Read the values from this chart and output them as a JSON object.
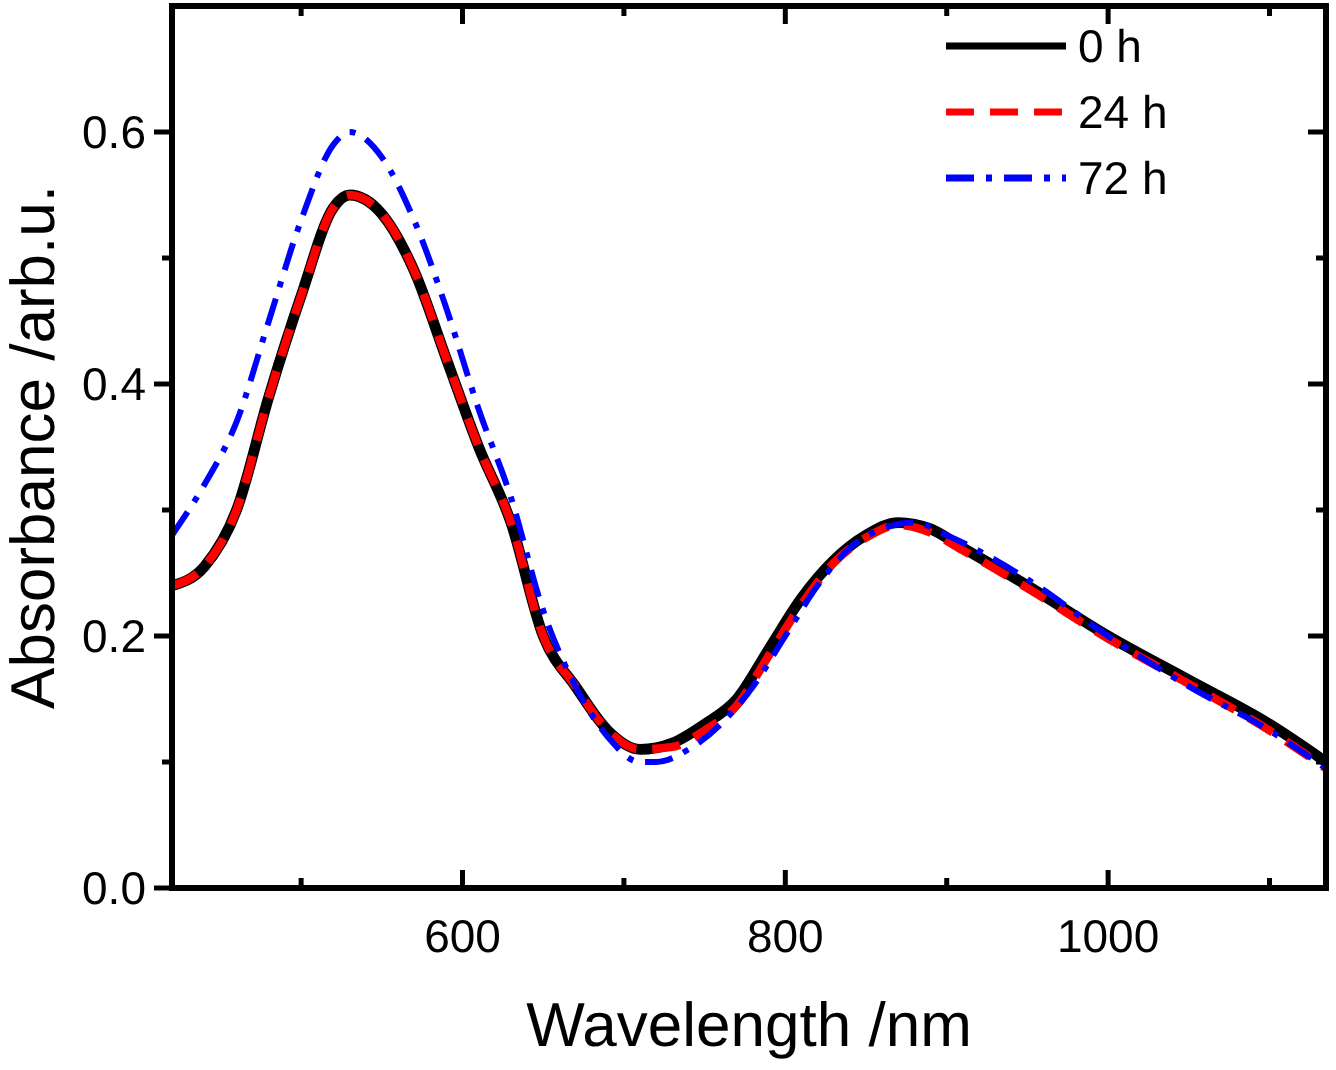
{
  "chart_data": {
    "type": "line",
    "xlabel": "Wavelength /nm",
    "ylabel": "Absorbance /arb.u.",
    "xlim": [
      420,
      1135
    ],
    "xticks": [
      {
        "value": 500,
        "label": null
      },
      600,
      {
        "value": 700,
        "label": null
      },
      800,
      {
        "value": 900,
        "label": null
      },
      1000,
      {
        "value": 1100,
        "label": null
      }
    ],
    "ylim": [
      0,
      0.7
    ],
    "yticks": [
      "0.0",
      {
        "value": 0.1,
        "label": null
      },
      {
        "value": 0.2,
        "label": "0.2"
      },
      {
        "value": 0.3,
        "label": null
      },
      {
        "value": 0.4,
        "label": "0.4"
      },
      {
        "value": 0.5,
        "label": null
      },
      {
        "value": 0.6,
        "label": "0.6"
      }
    ],
    "legend": "top right",
    "grid": false,
    "marker": "none",
    "x": [
      420,
      440,
      460,
      480,
      500,
      520,
      530,
      550,
      570,
      590,
      610,
      630,
      650,
      670,
      690,
      710,
      730,
      750,
      770,
      790,
      810,
      830,
      850,
      870,
      890,
      910,
      950,
      1000,
      1050,
      1100,
      1135
    ],
    "series": [
      {
        "name": "0 h",
        "color": "#000000",
        "line_style": "solid",
        "values": [
          0.24,
          0.255,
          0.3,
          0.39,
          0.47,
          0.54,
          0.55,
          0.535,
          0.49,
          0.42,
          0.35,
          0.29,
          0.2,
          0.16,
          0.125,
          0.11,
          0.115,
          0.13,
          0.15,
          0.19,
          0.23,
          0.26,
          0.28,
          0.29,
          0.285,
          0.27,
          0.24,
          0.2,
          0.165,
          0.13,
          0.1
        ]
      },
      {
        "name": "24 h",
        "color": "#ff0000",
        "line_style": "dashed",
        "values": [
          0.24,
          0.255,
          0.3,
          0.39,
          0.47,
          0.54,
          0.55,
          0.535,
          0.49,
          0.42,
          0.35,
          0.29,
          0.2,
          0.16,
          0.125,
          0.11,
          0.112,
          0.125,
          0.145,
          0.185,
          0.225,
          0.258,
          0.278,
          0.288,
          0.282,
          0.268,
          0.238,
          0.198,
          0.162,
          0.125,
          0.095
        ]
      },
      {
        "name": "72 h",
        "color": "#0000ff",
        "line_style": "dashdot",
        "x": [
          420,
          440,
          460,
          480,
          500,
          520,
          530,
          550,
          570,
          590,
          610,
          630,
          650,
          670,
          690,
          710,
          720,
          740,
          760,
          780,
          800,
          820,
          840,
          860,
          880,
          900,
          950,
          1000,
          1050,
          1100,
          1135
        ],
        "values": [
          0.28,
          0.32,
          0.37,
          0.45,
          0.53,
          0.59,
          0.6,
          0.58,
          0.53,
          0.46,
          0.38,
          0.31,
          0.22,
          0.16,
          0.12,
          0.1,
          0.1,
          0.11,
          0.13,
          0.16,
          0.2,
          0.24,
          0.27,
          0.285,
          0.29,
          0.28,
          0.245,
          0.2,
          0.16,
          0.125,
          0.095
        ]
      }
    ]
  }
}
